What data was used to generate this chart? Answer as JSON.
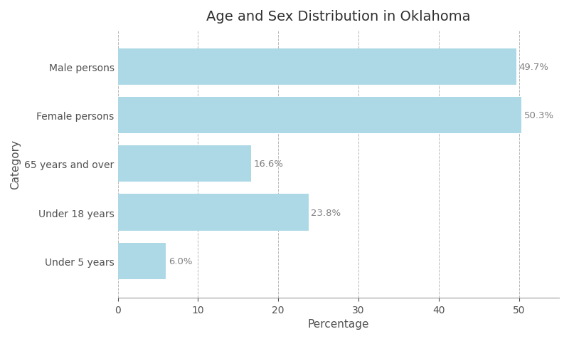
{
  "title": "Age and Sex Distribution in Oklahoma",
  "categories": [
    "Male persons",
    "Female persons",
    "65 years and over",
    "Under 18 years",
    "Under 5 years"
  ],
  "values": [
    49.7,
    50.3,
    16.6,
    23.8,
    6.0
  ],
  "bar_color": "#add8e6",
  "xlabel": "Percentage",
  "ylabel": "Category",
  "xlim": [
    0,
    55
  ],
  "xticks": [
    0,
    10,
    20,
    30,
    40,
    50
  ],
  "background_color": "#ffffff",
  "grid_color": "#b0b0b0",
  "label_color": "#808080",
  "title_fontsize": 14,
  "axis_label_fontsize": 11,
  "tick_fontsize": 10,
  "bar_height": 0.75
}
